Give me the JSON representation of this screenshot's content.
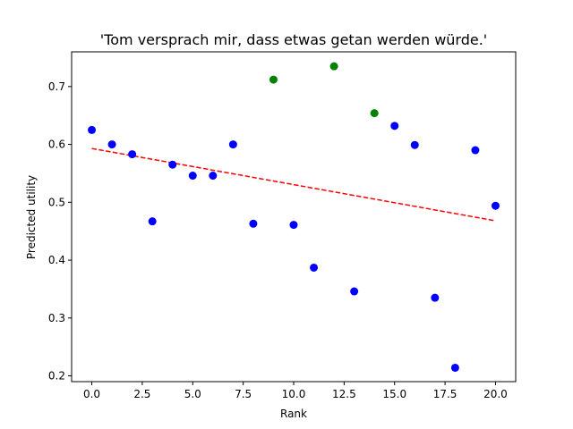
{
  "chart_data": {
    "type": "scatter",
    "title": "'Tom versprach mir, dass etwas getan werden würde.'",
    "xlabel": "Rank",
    "ylabel": "Predicted utility",
    "xlim": [
      -1,
      21
    ],
    "ylim": [
      0.19,
      0.76
    ],
    "xticks": [
      0,
      2.5,
      5,
      7.5,
      10,
      12.5,
      15,
      17.5,
      20
    ],
    "xtick_labels": [
      "0.0",
      "2.5",
      "5.0",
      "7.5",
      "10.0",
      "12.5",
      "15.0",
      "17.5",
      "20.0"
    ],
    "yticks": [
      0.2,
      0.3,
      0.4,
      0.5,
      0.6,
      0.7
    ],
    "ytick_labels": [
      "0.2",
      "0.3",
      "0.4",
      "0.5",
      "0.6",
      "0.7"
    ],
    "grid": false,
    "colors": {
      "default": "#0000ff",
      "highlight": "#008000",
      "trend": "#ff0000"
    },
    "points": [
      {
        "x": 0,
        "y": 0.625,
        "color": "#0000ff"
      },
      {
        "x": 1,
        "y": 0.6,
        "color": "#0000ff"
      },
      {
        "x": 2,
        "y": 0.583,
        "color": "#0000ff"
      },
      {
        "x": 3,
        "y": 0.467,
        "color": "#0000ff"
      },
      {
        "x": 4,
        "y": 0.565,
        "color": "#0000ff"
      },
      {
        "x": 5,
        "y": 0.546,
        "color": "#0000ff"
      },
      {
        "x": 6,
        "y": 0.546,
        "color": "#0000ff"
      },
      {
        "x": 7,
        "y": 0.6,
        "color": "#0000ff"
      },
      {
        "x": 8,
        "y": 0.463,
        "color": "#0000ff"
      },
      {
        "x": 9,
        "y": 0.712,
        "color": "#008000"
      },
      {
        "x": 10,
        "y": 0.461,
        "color": "#0000ff"
      },
      {
        "x": 11,
        "y": 0.387,
        "color": "#0000ff"
      },
      {
        "x": 12,
        "y": 0.735,
        "color": "#008000"
      },
      {
        "x": 13,
        "y": 0.346,
        "color": "#0000ff"
      },
      {
        "x": 14,
        "y": 0.654,
        "color": "#008000"
      },
      {
        "x": 15,
        "y": 0.632,
        "color": "#0000ff"
      },
      {
        "x": 16,
        "y": 0.599,
        "color": "#0000ff"
      },
      {
        "x": 17,
        "y": 0.335,
        "color": "#0000ff"
      },
      {
        "x": 18,
        "y": 0.214,
        "color": "#0000ff"
      },
      {
        "x": 19,
        "y": 0.59,
        "color": "#0000ff"
      },
      {
        "x": 20,
        "y": 0.494,
        "color": "#0000ff"
      }
    ],
    "trendline": {
      "style": "dashed",
      "x": [
        0,
        20
      ],
      "y": [
        0.593,
        0.468
      ]
    }
  }
}
